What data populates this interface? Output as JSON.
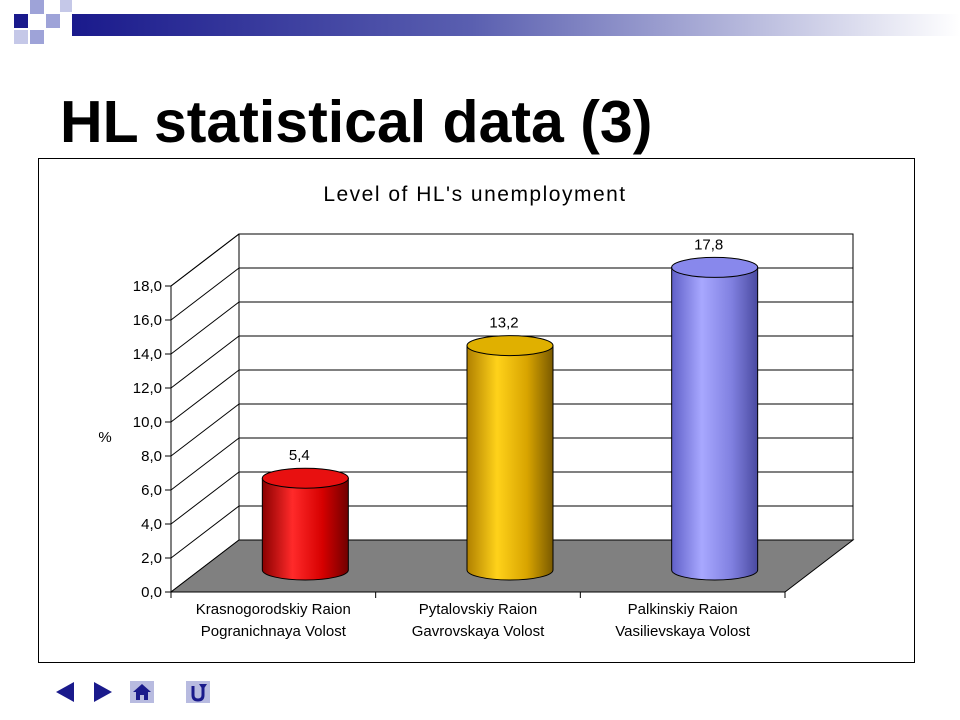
{
  "slide": {
    "title": "HL statistical data (3)"
  },
  "colors": {
    "decor_navy": "#1a1a8c",
    "decor_light": "#9ea3d8",
    "floor": "#808080",
    "grid": "#000000",
    "bar_red": "#e00000",
    "bar_gold": "#f0c000",
    "bar_blue": "#8c8cf0"
  },
  "chart_data": {
    "type": "bar",
    "style": "3d-cylinder",
    "title": "Level of HL's unemployment",
    "ylabel": "%",
    "xlabel": "",
    "ylim": [
      0,
      18
    ],
    "ytick_step": 2,
    "ytick_labels": [
      "0,0",
      "2,0",
      "4,0",
      "6,0",
      "8,0",
      "10,0",
      "12,0",
      "14,0",
      "16,0",
      "18,0"
    ],
    "grid": true,
    "legend": "none",
    "categories": [
      [
        "Krasnogorodskiy Raion",
        "Pogranichnaya Volost"
      ],
      [
        "Pytalovskiy Raion",
        "Gavrovskaya Volost"
      ],
      [
        "Palkinskiy Raion",
        "Vasilievskaya Volost"
      ]
    ],
    "values": [
      5.4,
      13.2,
      17.8
    ],
    "data_labels": [
      "5,4",
      "13,2",
      "17,8"
    ],
    "bar_colors": [
      "#e00000",
      "#f0c000",
      "#8c8cf0"
    ]
  },
  "nav": {
    "prev_icon": "triangle-left-icon",
    "next_icon": "triangle-right-icon",
    "home_icon": "house-icon",
    "return_icon": "return-arrow-icon"
  }
}
